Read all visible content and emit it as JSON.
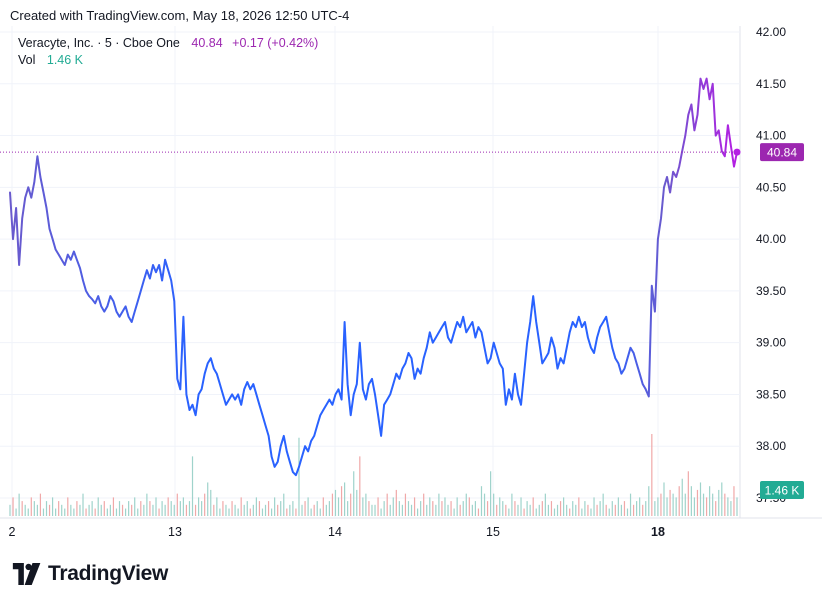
{
  "header": {
    "text": "Created with TradingView.com, May 18, 2026 12:50 UTC-4"
  },
  "legend": {
    "symbol": "Veracyte, Inc. · 5 · Cboe One",
    "price": "40.84",
    "change": "+0.17 (+0.42%)",
    "volume_label": "Vol",
    "volume_value": "1.46 K"
  },
  "footer": {
    "brand": "TradingView"
  },
  "colors": {
    "line_start": "#2962ff",
    "line_mid": "#6a5acd",
    "line_end": "#b51ee3",
    "price_badge": "#9c27b0",
    "volume_badge": "#22ab94",
    "volume_up": "#9fd3cb",
    "volume_down": "#f0a8a8",
    "grid": "#f0f3fa"
  },
  "chart_data": {
    "type": "line",
    "x_ticks": [
      "2",
      "13",
      "14",
      "15",
      "18"
    ],
    "y_ticks": [
      "42.00",
      "41.50",
      "41.00",
      "40.50",
      "40.00",
      "39.50",
      "39.00",
      "38.50",
      "38.00",
      "37.50"
    ],
    "ylim": [
      37.5,
      42.0
    ],
    "last_price_label": "40.84",
    "last_volume_label": "1.46 K",
    "series": [
      {
        "values": [
          40.45,
          40.0,
          40.3,
          39.75,
          40.2,
          40.4,
          40.5,
          40.4,
          40.55,
          40.8,
          40.6,
          40.45,
          40.3,
          40.1,
          40.0,
          39.9,
          39.85,
          39.8,
          39.75,
          39.85,
          39.8,
          39.88,
          39.8,
          39.72,
          39.6,
          39.5,
          39.45,
          39.42,
          39.38,
          39.45,
          39.35,
          39.3,
          39.35,
          39.45,
          39.4,
          39.3,
          39.25,
          39.3,
          39.35,
          39.25,
          39.2,
          39.3,
          39.4,
          39.5,
          39.6,
          39.7,
          39.62,
          39.75,
          39.68,
          39.75,
          39.6,
          39.8,
          39.7,
          39.6,
          39.4,
          38.65,
          38.55,
          39.25,
          38.5,
          38.35,
          38.4,
          38.3,
          38.5,
          38.55,
          38.7,
          38.8,
          38.85,
          38.75,
          38.7,
          38.6,
          38.5,
          38.4,
          38.45,
          38.5,
          38.45,
          38.5,
          38.4,
          38.55,
          38.62,
          38.55,
          38.6,
          38.5,
          38.4,
          38.3,
          38.2,
          38.1,
          37.9,
          37.8,
          37.85,
          38.0,
          38.1,
          37.95,
          37.85,
          37.75,
          37.72,
          37.8,
          37.9,
          38.0,
          37.95,
          38.05,
          38.1,
          38.2,
          38.3,
          38.35,
          38.4,
          38.45,
          38.4,
          38.5,
          38.55,
          38.45,
          39.2,
          38.6,
          38.3,
          38.5,
          38.6,
          39.0,
          38.55,
          38.45,
          38.6,
          38.65,
          38.5,
          38.3,
          38.1,
          38.4,
          38.45,
          38.5,
          38.6,
          38.7,
          38.65,
          38.75,
          38.8,
          38.9,
          38.85,
          38.65,
          38.75,
          38.7,
          38.85,
          38.95,
          39.1,
          39.0,
          39.05,
          39.1,
          39.15,
          39.2,
          39.05,
          39.0,
          39.1,
          39.2,
          39.15,
          39.25,
          39.1,
          39.15,
          39.2,
          39.05,
          39.15,
          39.1,
          38.95,
          38.8,
          38.85,
          39.0,
          38.9,
          38.8,
          38.75,
          38.4,
          38.55,
          38.45,
          38.7,
          38.5,
          38.4,
          38.7,
          39.0,
          39.2,
          39.45,
          39.2,
          39.0,
          38.8,
          38.85,
          38.9,
          39.05,
          38.95,
          38.75,
          38.85,
          38.8,
          38.95,
          39.1,
          39.2,
          39.15,
          39.25,
          39.15,
          39.2,
          39.05,
          38.95,
          38.9,
          39.05,
          39.15,
          39.2,
          39.25,
          39.1,
          38.95,
          38.85,
          38.8,
          38.7,
          38.75,
          38.85,
          38.95,
          38.9,
          38.8,
          38.7,
          38.6,
          38.55,
          38.48,
          39.55,
          39.3,
          40.0,
          40.2,
          40.5,
          40.6,
          40.45,
          40.65,
          40.6,
          40.7,
          40.85,
          41.0,
          41.2,
          41.3,
          41.05,
          41.2,
          41.55,
          41.45,
          41.55,
          41.35,
          41.5,
          41.0,
          41.05,
          40.85,
          40.8,
          41.1,
          40.9,
          40.7,
          40.84
        ]
      }
    ],
    "volume": [
      3,
      5,
      2,
      6,
      4,
      3,
      2,
      5,
      4,
      3,
      6,
      2,
      4,
      3,
      5,
      2,
      4,
      3,
      2,
      5,
      3,
      2,
      4,
      3,
      6,
      2,
      3,
      4,
      2,
      5,
      3,
      4,
      2,
      3,
      5,
      2,
      4,
      3,
      2,
      4,
      3,
      5,
      2,
      4,
      3,
      6,
      4,
      3,
      5,
      2,
      4,
      3,
      5,
      4,
      3,
      6,
      4,
      5,
      3,
      4,
      16,
      3,
      5,
      4,
      6,
      9,
      7,
      3,
      5,
      2,
      4,
      3,
      2,
      4,
      3,
      2,
      5,
      3,
      4,
      2,
      3,
      5,
      4,
      2,
      3,
      4,
      2,
      5,
      3,
      4,
      6,
      2,
      3,
      4,
      2,
      21,
      3,
      4,
      5,
      2,
      3,
      4,
      2,
      5,
      3,
      4,
      6,
      7,
      5,
      8,
      9,
      4,
      6,
      12,
      7,
      16,
      5,
      6,
      4,
      3,
      3,
      5,
      2,
      4,
      6,
      3,
      5,
      7,
      4,
      3,
      6,
      4,
      3,
      5,
      2,
      4,
      6,
      3,
      5,
      4,
      3,
      6,
      4,
      5,
      3,
      4,
      2,
      5,
      3,
      4,
      6,
      5,
      3,
      4,
      2,
      8,
      6,
      4,
      12,
      6,
      3,
      5,
      4,
      3,
      2,
      6,
      4,
      3,
      5,
      2,
      4,
      3,
      5,
      2,
      3,
      4,
      6,
      3,
      4,
      2,
      3,
      4,
      5,
      3,
      2,
      4,
      3,
      5,
      2,
      4,
      3,
      2,
      5,
      3,
      4,
      6,
      3,
      2,
      4,
      3,
      5,
      3,
      4,
      2,
      6,
      3,
      4,
      5,
      3,
      4,
      8,
      22,
      4,
      5,
      6,
      9,
      5,
      7,
      6,
      5,
      8,
      10,
      6,
      12,
      8,
      5,
      7,
      9,
      6,
      5,
      8,
      6,
      4,
      7,
      9,
      6,
      5,
      4,
      8,
      5
    ]
  }
}
